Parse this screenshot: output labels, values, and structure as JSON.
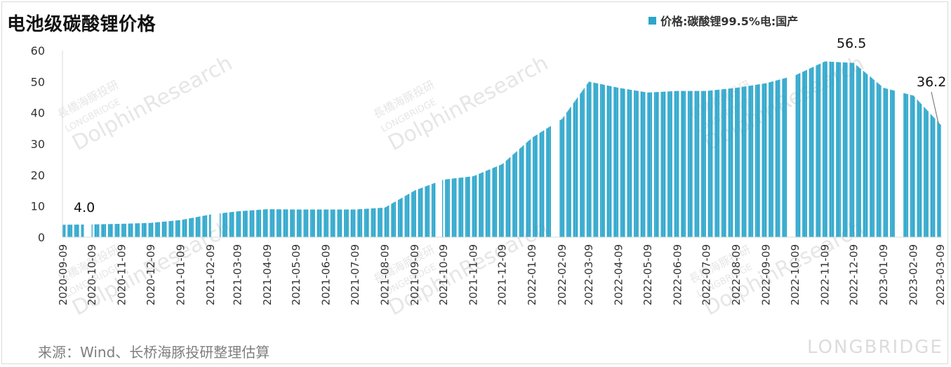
{
  "title": "电池级碳酸锂价格",
  "legend": {
    "label": "价格:碳酸锂99.5%电:国产"
  },
  "source": "来源：Wind、长桥海豚投研整理估算",
  "watermark": {
    "brand_cn": "長橋海豚投研",
    "brand_en": "LONGBRIDGE",
    "brand_research": "DolphinResearch",
    "footer_brand": "LONGBRIDGE"
  },
  "colors": {
    "bar": "#2ba6cb",
    "axis": "#d9d9d9",
    "text": "#333333",
    "watermark": "#e6e6e6"
  },
  "chart_data": {
    "type": "bar",
    "series": [
      {
        "name": "价格:碳酸锂99.5%电:国产"
      }
    ],
    "ylim": [
      0,
      60
    ],
    "yticks": [
      "0",
      "10",
      "20",
      "30",
      "40",
      "50",
      "60"
    ],
    "xticks": [
      "2020-09-09",
      "2020-10-09",
      "2020-11-09",
      "2020-12-09",
      "2021-01-09",
      "2021-02-09",
      "2021-03-09",
      "2021-04-09",
      "2021-05-09",
      "2021-06-09",
      "2021-07-09",
      "2021-08-09",
      "2021-09-09",
      "2021-10-09",
      "2021-11-09",
      "2021-12-09",
      "2022-01-09",
      "2022-02-09",
      "2022-03-09",
      "2022-04-09",
      "2022-05-09",
      "2022-06-09",
      "2022-07-09",
      "2022-08-09",
      "2022-09-09",
      "2022-10-09",
      "2022-11-09",
      "2022-12-09",
      "2023-01-09",
      "2023-02-09",
      "2023-03-09"
    ],
    "x_range": [
      "2020-09-09",
      "2023-03-09"
    ],
    "price_curve": [
      [
        "2020-09-09",
        4.0
      ],
      [
        "2020-10-09",
        4.1
      ],
      [
        "2020-11-09",
        4.3
      ],
      [
        "2020-12-09",
        4.6
      ],
      [
        "2021-01-09",
        5.5
      ],
      [
        "2021-02-09",
        7.3
      ],
      [
        "2021-03-09",
        8.3
      ],
      [
        "2021-04-09",
        9.0
      ],
      [
        "2021-05-09",
        8.9
      ],
      [
        "2021-06-09",
        8.9
      ],
      [
        "2021-07-09",
        8.9
      ],
      [
        "2021-08-09",
        9.5
      ],
      [
        "2021-09-09",
        15.0
      ],
      [
        "2021-10-09",
        18.5
      ],
      [
        "2021-11-09",
        19.6
      ],
      [
        "2021-12-09",
        23.5
      ],
      [
        "2022-01-09",
        32.0
      ],
      [
        "2022-02-09",
        38.0
      ],
      [
        "2022-03-09",
        50.0
      ],
      [
        "2022-04-09",
        48.0
      ],
      [
        "2022-05-09",
        46.5
      ],
      [
        "2022-06-09",
        47.0
      ],
      [
        "2022-07-09",
        47.0
      ],
      [
        "2022-08-09",
        48.0
      ],
      [
        "2022-09-09",
        49.5
      ],
      [
        "2022-10-09",
        52.0
      ],
      [
        "2022-11-09",
        56.5
      ],
      [
        "2022-12-09",
        56.0
      ],
      [
        "2023-01-09",
        48.0
      ],
      [
        "2023-02-09",
        45.5
      ],
      [
        "2023-03-09",
        36.2
      ]
    ],
    "gaps": [
      [
        "2020-10-01",
        "2020-10-08"
      ],
      [
        "2021-02-10",
        "2021-02-18"
      ],
      [
        "2021-10-01",
        "2021-10-07"
      ],
      [
        "2022-01-31",
        "2022-02-06"
      ],
      [
        "2022-10-01",
        "2022-10-07"
      ],
      [
        "2023-01-21",
        "2023-01-29"
      ]
    ],
    "annotations": [
      {
        "label": "4.0",
        "value": 4.0,
        "date": "2020-09-09"
      },
      {
        "label": "56.5",
        "value": 56.5,
        "date": "2022-11-20"
      },
      {
        "label": "36.2",
        "value": 36.2,
        "date": "2023-03-09"
      }
    ]
  }
}
